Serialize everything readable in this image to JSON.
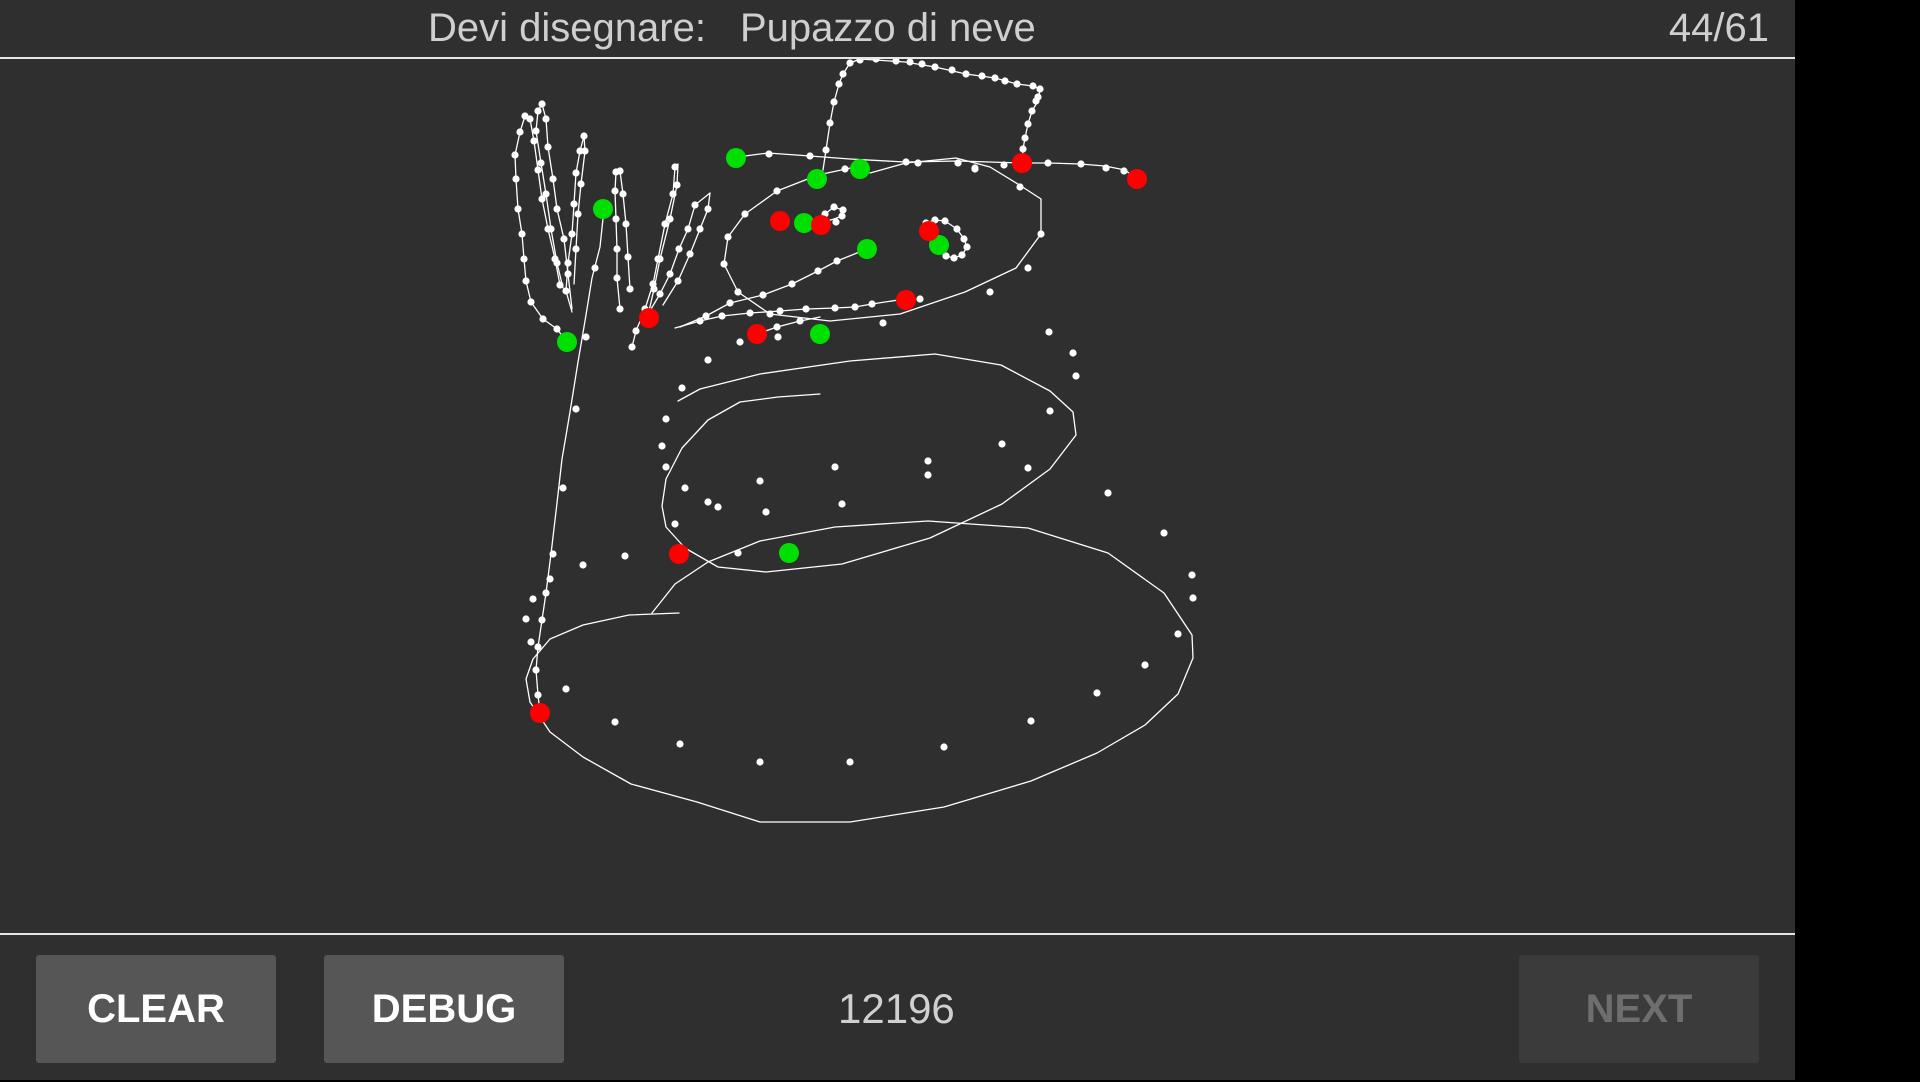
{
  "header": {
    "prompt_label": "Devi disegnare:",
    "target_word": "Pupazzo di neve",
    "progress": "44/61"
  },
  "footer": {
    "clear_label": "CLEAR",
    "debug_label": "DEBUG",
    "score": "12196",
    "next_label": "NEXT"
  },
  "colors": {
    "background": "#2f2f2f",
    "stroke": "#ffffff",
    "start_marker": "#00e000",
    "end_marker": "#ff0000"
  }
}
